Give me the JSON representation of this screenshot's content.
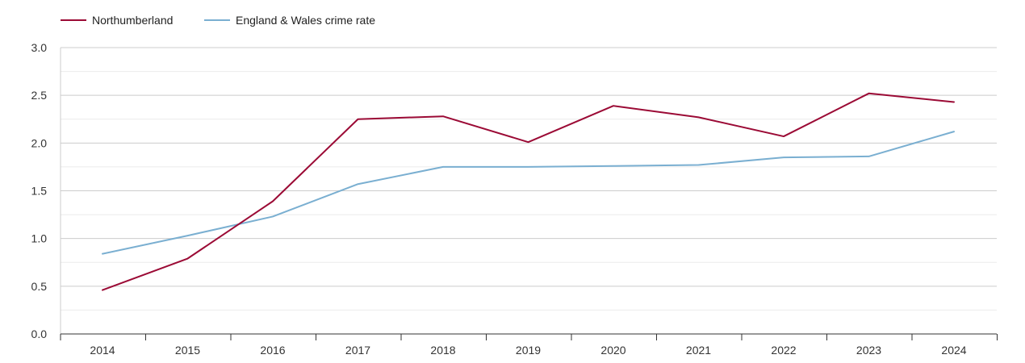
{
  "chart_data": {
    "type": "line",
    "title": "",
    "xlabel": "",
    "ylabel": "",
    "x": [
      "2014",
      "2015",
      "2016",
      "2017",
      "2018",
      "2019",
      "2020",
      "2021",
      "2022",
      "2023",
      "2024"
    ],
    "ylim": [
      0,
      3
    ],
    "yticks": [
      "0.0",
      "0.5",
      "1.0",
      "1.5",
      "2.0",
      "2.5",
      "3.0"
    ],
    "grid": true,
    "legend_position": "top-left",
    "series": [
      {
        "name": "Northumberland",
        "color": "#9b0a35",
        "values": [
          0.46,
          0.79,
          1.39,
          2.25,
          2.28,
          2.01,
          2.39,
          2.27,
          2.07,
          2.52,
          2.43
        ]
      },
      {
        "name": "England & Wales crime rate",
        "color": "#7aafd1",
        "values": [
          0.84,
          1.03,
          1.23,
          1.57,
          1.75,
          1.75,
          1.76,
          1.77,
          1.85,
          1.86,
          2.12
        ]
      }
    ]
  }
}
